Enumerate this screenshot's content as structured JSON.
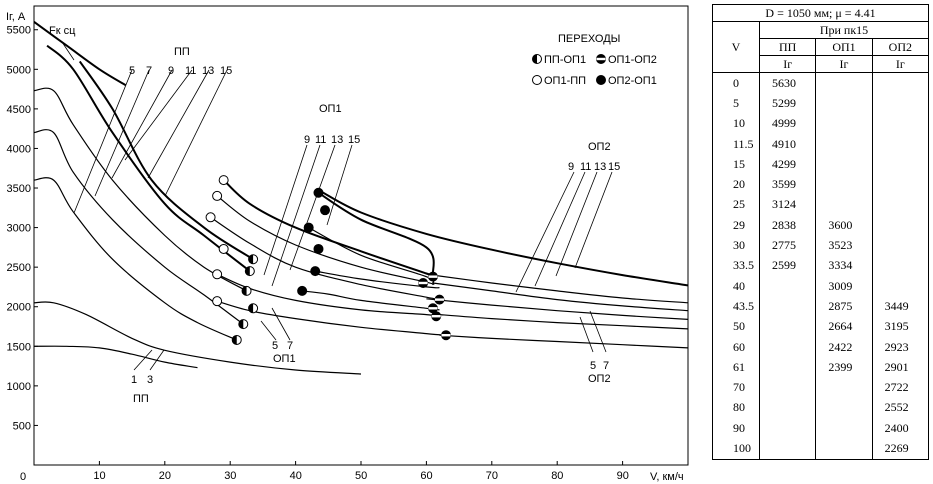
{
  "chart_data": {
    "type": "line",
    "ylabel": "Iг, А",
    "xlabel": "V, км/ч",
    "xlim": [
      0,
      100
    ],
    "ylim": [
      0,
      5800
    ],
    "x_ticks": [
      "0",
      "10",
      "20",
      "30",
      "40",
      "50",
      "60",
      "70",
      "80",
      "90"
    ],
    "y_ticks": [
      "500",
      "1000",
      "1500",
      "2000",
      "2500",
      "3000",
      "3500",
      "4000",
      "4500",
      "5000",
      "5500"
    ],
    "grid": false,
    "annotations": {
      "fk": "Fк сц",
      "pp_top": "ПП",
      "pp_bottom": "ПП",
      "op1_top": "ОП1",
      "op1_bottom": "ОП1",
      "op2_top": "ОП2",
      "op2_bottom": "ОП2",
      "pp_nums_top": [
        "5",
        "7",
        "9",
        "11",
        "13",
        "15"
      ],
      "pp_nums_bottom": [
        "1",
        "3"
      ],
      "op1_nums_top": [
        "9",
        "11",
        "13",
        "15"
      ],
      "op1_nums_bottom": [
        "5",
        "7"
      ],
      "op2_nums_top": [
        "9",
        "11",
        "13",
        "15"
      ],
      "op2_nums_bottom": [
        "5",
        "7"
      ]
    },
    "legend": {
      "title": "ПЕРЕХОДЫ",
      "items": [
        "ПП-ОП1",
        "ОП1-ОП2",
        "ОП1-ПП",
        "ОП2-ОП1"
      ]
    },
    "series": [
      {
        "x": [
          0,
          5,
          10,
          14
        ],
        "y": [
          5600,
          5300,
          5000,
          4800
        ]
      },
      {
        "x": [
          0,
          5,
          10,
          15,
          20,
          25
        ],
        "y": [
          1500,
          1500,
          1480,
          1400,
          1300,
          1230
        ]
      },
      {
        "x": [
          0,
          3,
          8,
          15,
          20,
          30,
          40,
          50
        ],
        "y": [
          2050,
          2050,
          1900,
          1600,
          1450,
          1300,
          1200,
          1150
        ]
      },
      {
        "x": [
          0,
          3,
          6,
          12,
          20,
          25,
          31
        ],
        "y": [
          3600,
          3600,
          3200,
          2600,
          2050,
          1800,
          1580
        ]
      },
      {
        "x": [
          0,
          3,
          6,
          12,
          20,
          26,
          32
        ],
        "y": [
          4200,
          4200,
          3700,
          3100,
          2500,
          2150,
          1780
        ]
      },
      {
        "x": [
          0,
          3,
          6,
          12,
          20,
          26,
          32.5
        ],
        "y": [
          4730,
          4730,
          4300,
          3600,
          2900,
          2500,
          2200
        ]
      },
      {
        "x": [
          2,
          6,
          12,
          20,
          26,
          33
        ],
        "y": [
          5300,
          5000,
          4200,
          3300,
          2900,
          2450
        ]
      },
      {
        "x": [
          7,
          12,
          18,
          26,
          33.5
        ],
        "y": [
          5100,
          4500,
          3600,
          3000,
          2600
        ]
      },
      {
        "x": [
          28,
          33,
          40,
          50,
          60,
          63
        ],
        "y": [
          2070,
          1950,
          1850,
          1740,
          1660,
          1640
        ]
      },
      {
        "x": [
          28,
          33,
          40,
          50,
          60,
          61.5
        ],
        "y": [
          2410,
          2230,
          2080,
          1960,
          1900,
          1880
        ]
      },
      {
        "x": [
          27,
          33,
          40,
          50,
          60,
          62
        ],
        "y": [
          3130,
          2800,
          2500,
          2280,
          2120,
          2090
        ]
      },
      {
        "x": [
          28,
          33,
          40,
          50,
          60,
          61
        ],
        "y": [
          3400,
          3080,
          2780,
          2500,
          2310,
          2280
        ]
      },
      {
        "x": [
          29,
          33,
          40,
          50,
          60,
          61
        ],
        "y": [
          3600,
          3300,
          3000,
          2700,
          2420,
          2400
        ]
      },
      {
        "x": [
          41,
          45,
          50,
          60,
          62
        ],
        "y": [
          2200,
          2160,
          2080,
          1980,
          1960
        ]
      },
      {
        "x": [
          43,
          50,
          60,
          62
        ],
        "y": [
          2450,
          2350,
          2250,
          2240
        ]
      },
      {
        "x": [
          42,
          50,
          60,
          61
        ],
        "y": [
          3000,
          2650,
          2380,
          2300
        ]
      },
      {
        "x": [
          43.5,
          50,
          60,
          61
        ],
        "y": [
          3440,
          3100,
          2750,
          2400
        ]
      },
      {
        "x": [
          62,
          70,
          80,
          90,
          100
        ],
        "y": [
          1640,
          1600,
          1560,
          1520,
          1480
        ]
      },
      {
        "x": [
          62,
          70,
          80,
          90,
          100
        ],
        "y": [
          1900,
          1850,
          1800,
          1760,
          1720
        ]
      },
      {
        "x": [
          60,
          70,
          80,
          90,
          100
        ],
        "y": [
          2100,
          2020,
          1950,
          1890,
          1840
        ]
      },
      {
        "x": [
          61,
          70,
          80,
          90,
          100
        ],
        "y": [
          2300,
          2200,
          2090,
          2010,
          1950
        ]
      },
      {
        "x": [
          61,
          70,
          80,
          90,
          100
        ],
        "y": [
          2400,
          2300,
          2200,
          2110,
          2050
        ]
      },
      {
        "x": [
          44,
          50,
          60,
          70,
          80,
          90,
          100
        ],
        "y": [
          3450,
          3190,
          2920,
          2720,
          2550,
          2400,
          2270
        ]
      }
    ],
    "markers": [
      {
        "type": "pp-op1",
        "x": 31,
        "y": 1580
      },
      {
        "type": "pp-op1",
        "x": 32,
        "y": 1780
      },
      {
        "type": "pp-op1",
        "x": 33.5,
        "y": 1980
      },
      {
        "type": "pp-op1",
        "x": 32.5,
        "y": 2200
      },
      {
        "type": "pp-op1",
        "x": 33,
        "y": 2450
      },
      {
        "type": "pp-op1",
        "x": 33.5,
        "y": 2600
      },
      {
        "type": "op1-op2",
        "x": 63,
        "y": 1640
      },
      {
        "type": "op1-op2",
        "x": 61.5,
        "y": 1880
      },
      {
        "type": "op1-op2",
        "x": 61,
        "y": 1980
      },
      {
        "type": "op1-op2",
        "x": 62,
        "y": 2090
      },
      {
        "type": "op1-op2",
        "x": 59.5,
        "y": 2300
      },
      {
        "type": "op1-op2",
        "x": 61,
        "y": 2380
      },
      {
        "type": "op1-pp",
        "x": 28,
        "y": 2070
      },
      {
        "type": "op1-pp",
        "x": 28,
        "y": 2410
      },
      {
        "type": "op1-pp",
        "x": 29,
        "y": 2730
      },
      {
        "type": "op1-pp",
        "x": 27,
        "y": 3130
      },
      {
        "type": "op1-pp",
        "x": 28,
        "y": 3400
      },
      {
        "type": "op1-pp",
        "x": 29,
        "y": 3600
      },
      {
        "type": "op2-op1",
        "x": 41,
        "y": 2200
      },
      {
        "type": "op2-op1",
        "x": 43,
        "y": 2450
      },
      {
        "type": "op2-op1",
        "x": 43.5,
        "y": 2730
      },
      {
        "type": "op2-op1",
        "x": 42,
        "y": 3000
      },
      {
        "type": "op2-op1",
        "x": 44.5,
        "y": 3220
      },
      {
        "type": "op2-op1",
        "x": 43.5,
        "y": 3440
      }
    ]
  },
  "table": {
    "title": "D = 1050 мм; μ = 4.41",
    "subtitle": "При пк15",
    "head_v": "V",
    "columns": [
      "ПП",
      "ОП1",
      "ОП2"
    ],
    "units": [
      "Iг",
      "Iг",
      "Iг"
    ],
    "rows": [
      [
        "0",
        "5630",
        "",
        ""
      ],
      [
        "5",
        "5299",
        "",
        ""
      ],
      [
        "10",
        "4999",
        "",
        ""
      ],
      [
        "11.5",
        "4910",
        "",
        ""
      ],
      [
        "15",
        "4299",
        "",
        ""
      ],
      [
        "20",
        "3599",
        "",
        ""
      ],
      [
        "25",
        "3124",
        "",
        ""
      ],
      [
        "29",
        "2838",
        "3600",
        ""
      ],
      [
        "30",
        "2775",
        "3523",
        ""
      ],
      [
        "33.5",
        "2599",
        "3334",
        ""
      ],
      [
        "40",
        "",
        "3009",
        ""
      ],
      [
        "43.5",
        "",
        "2875",
        "3449"
      ],
      [
        "50",
        "",
        "2664",
        "3195"
      ],
      [
        "60",
        "",
        "2422",
        "2923"
      ],
      [
        "61",
        "",
        "2399",
        "2901"
      ],
      [
        "70",
        "",
        "",
        "2722"
      ],
      [
        "80",
        "",
        "",
        "2552"
      ],
      [
        "90",
        "",
        "",
        "2400"
      ],
      [
        "100",
        "",
        "",
        "2269"
      ]
    ]
  }
}
